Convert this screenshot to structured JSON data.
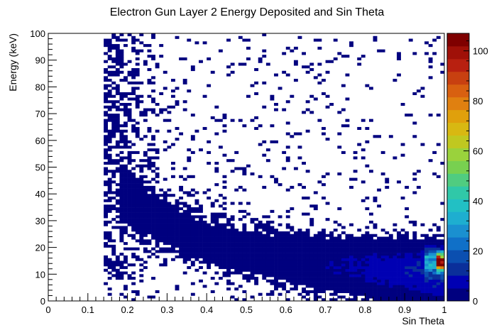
{
  "chart_data": {
    "type": "heatmap",
    "title": "Electron Gun Layer 2 Energy Deposited and Sin Theta",
    "xlabel": "Sin Theta",
    "ylabel": "Energy (keV)",
    "xlim": [
      0,
      1
    ],
    "ylim": [
      0,
      100
    ],
    "x_ticks": [
      "0",
      "0.1",
      "0.2",
      "0.3",
      "0.4",
      "0.5",
      "0.6",
      "0.7",
      "0.8",
      "0.9",
      "1"
    ],
    "y_ticks": [
      "0",
      "10",
      "20",
      "30",
      "40",
      "50",
      "60",
      "70",
      "80",
      "90",
      "100"
    ],
    "z_range": [
      0,
      107
    ],
    "z_ticks": [
      "0",
      "20",
      "40",
      "60",
      "80",
      "100"
    ],
    "bins": {
      "x": 100,
      "y": 100
    },
    "colormap": [
      "#00007f",
      "#0000b3",
      "#0a2f9a",
      "#0b4fb0",
      "#1070c8",
      "#1a90d0",
      "#1eaed0",
      "#22c0c4",
      "#30c8a8",
      "#50cc80",
      "#78d050",
      "#9ad23c",
      "#c0c820",
      "#d8b812",
      "#e0a00c",
      "#e08010",
      "#d86010",
      "#c84010",
      "#b82010",
      "#a01008",
      "#7f0000"
    ],
    "density_description": "Sparse counts at high energy for sin theta 0.14-0.3; dense band decreasing from ~40 keV at 0.2 to ~14 keV at 1.0; hot spot (~107) near sin theta 0.99-1.0, energy 12-18 keV."
  }
}
